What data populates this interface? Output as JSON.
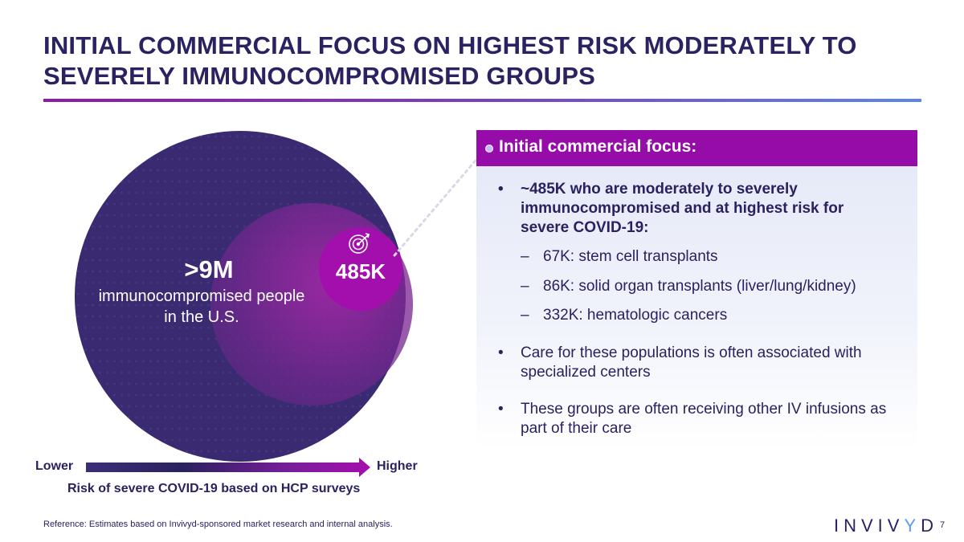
{
  "slide": {
    "title": "INITIAL COMMERCIAL FOCUS ON HIGHEST RISK MODERATELY TO SEVERELY IMMUNOCOMPROMISED GROUPS",
    "page_number": "7",
    "reference": "Reference: Estimates based on Invivyd-sponsored market research and internal analysis."
  },
  "diagram": {
    "big_value": ">9M",
    "big_desc": "immunocompromised people in the U.S.",
    "small_value": "485K",
    "target_icon": "target-icon"
  },
  "axis": {
    "lower": "Lower",
    "higher": "Higher",
    "caption": "Risk of severe COVID-19 based on HCP surveys"
  },
  "panel": {
    "title": "Initial commercial focus:",
    "bullet1": "~485K who are moderately to severely immunocompromised and at highest risk for severe COVID-19:",
    "sub1": "67K: stem cell transplants",
    "sub2": "86K: solid organ transplants (liver/lung/kidney)",
    "sub3": "332K: hematologic cancers",
    "bullet2": "Care for these populations is often associated with specialized centers",
    "bullet3": "These groups are often receiving other IV infusions as part of their care",
    "bullet_mark": "•",
    "sub_mark": "–"
  },
  "logo": {
    "text_before": "INVIV",
    "text_accent": "Y",
    "text_after": "D"
  },
  "colors": {
    "navy": "#2a2160",
    "magenta": "#960ca8",
    "accent_blue": "#5a9cf0"
  }
}
